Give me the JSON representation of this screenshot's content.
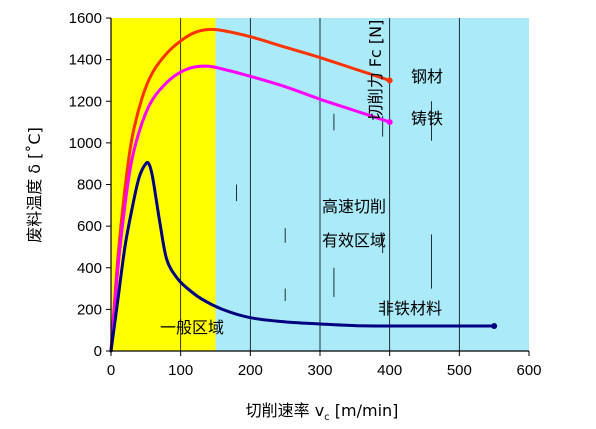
{
  "chart_data": {
    "type": "line",
    "xlabel": "切削速率 v",
    "xlabel_sub": "c",
    "xlabel_unit": " [m/min]",
    "ylabel": "废料温度 δ [˚C]",
    "ylabel2": "切削力 Fc [N]",
    "xlim": [
      0,
      600
    ],
    "ylim": [
      0,
      1600
    ],
    "x_ticks": [
      0,
      100,
      200,
      300,
      400,
      500,
      600
    ],
    "y_ticks": [
      0,
      200,
      400,
      600,
      800,
      1000,
      1200,
      1400,
      1600
    ],
    "grid": "vertical",
    "regions": [
      {
        "label": "一般区域",
        "x": [
          0,
          150
        ],
        "color": "#ffff00"
      },
      {
        "label_lines": [
          "高速切削",
          "有效区域"
        ],
        "x": [
          150,
          600
        ],
        "color": "#aaeaf9"
      }
    ],
    "series": [
      {
        "name": "钢材",
        "color": "#ff3300",
        "x": [
          0,
          10,
          20,
          30,
          45,
          60,
          80,
          100,
          120,
          140,
          160,
          200,
          250,
          300,
          350,
          400
        ],
        "y": [
          0,
          450,
          780,
          1020,
          1220,
          1340,
          1430,
          1490,
          1530,
          1545,
          1540,
          1510,
          1460,
          1410,
          1355,
          1300
        ]
      },
      {
        "name": "铸铁",
        "color": "#ff00ff",
        "x": [
          0,
          10,
          20,
          30,
          45,
          60,
          80,
          100,
          120,
          140,
          160,
          200,
          250,
          300,
          350,
          400
        ],
        "y": [
          0,
          400,
          700,
          920,
          1100,
          1210,
          1290,
          1340,
          1365,
          1368,
          1355,
          1320,
          1270,
          1210,
          1155,
          1100
        ]
      },
      {
        "name": "非铁材料",
        "color": "#000080",
        "x": [
          0,
          10,
          20,
          30,
          40,
          50,
          55,
          60,
          70,
          80,
          95,
          110,
          130,
          160,
          200,
          250,
          300,
          350,
          400,
          450,
          500,
          550
        ],
        "y": [
          0,
          250,
          500,
          680,
          830,
          900,
          895,
          830,
          620,
          440,
          350,
          300,
          250,
          200,
          160,
          140,
          130,
          122,
          120,
          120,
          120,
          120
        ]
      }
    ]
  }
}
